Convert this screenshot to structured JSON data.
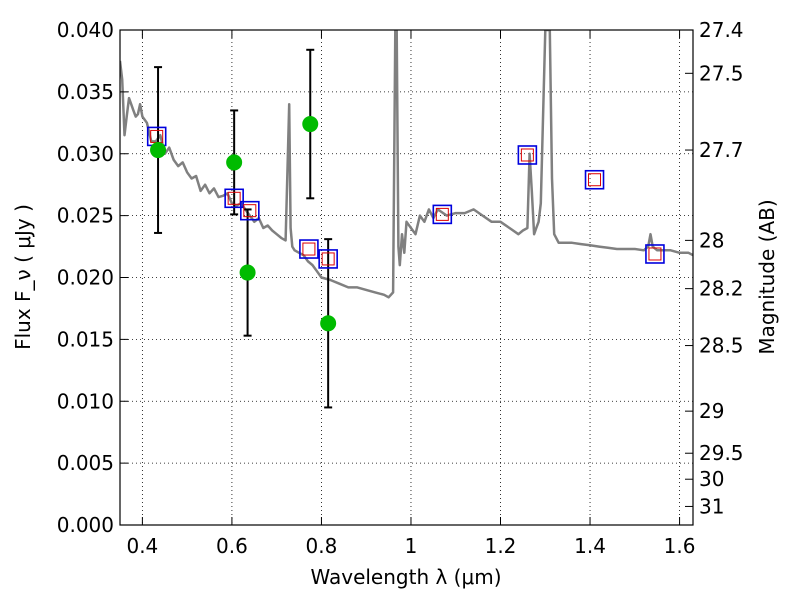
{
  "chart_data": {
    "type": "scatter",
    "xlabel": "Wavelength  λ (μm)",
    "ylabel": "Flux  F_ν  ( μJy )",
    "y2label": "Magnitude (AB)",
    "xlim": [
      0.35,
      1.63
    ],
    "ylim": [
      0.0,
      0.04
    ],
    "grid": true,
    "grid_style": "dotted",
    "x_ticks": [
      0.4,
      0.6,
      0.8,
      1.0,
      1.2,
      1.4,
      1.6
    ],
    "x_tick_labels": [
      "0.4",
      "0.6",
      "0.8",
      "1",
      "1.2",
      "1.4",
      "1.6"
    ],
    "y_ticks": [
      0.0,
      0.005,
      0.01,
      0.015,
      0.02,
      0.025,
      0.03,
      0.035,
      0.04
    ],
    "y_tick_labels": [
      "0.000",
      "0.005",
      "0.010",
      "0.015",
      "0.020",
      "0.025",
      "0.030",
      "0.035",
      "0.040"
    ],
    "y2_ticks": [
      {
        "flux": 0.04,
        "label": "27.4"
      },
      {
        "flux": 0.0365,
        "label": "27.5"
      },
      {
        "flux": 0.0303,
        "label": "27.7"
      },
      {
        "flux": 0.023,
        "label": "28"
      },
      {
        "flux": 0.0191,
        "label": "28.2"
      },
      {
        "flux": 0.0145,
        "label": "28.5"
      },
      {
        "flux": 0.0092,
        "label": "29"
      },
      {
        "flux": 0.0058,
        "label": "29.5"
      },
      {
        "flux": 0.0037,
        "label": "30"
      },
      {
        "flux": 0.0015,
        "label": "31"
      }
    ],
    "colors": {
      "spectrum": "#808080",
      "observed": "#00bb00",
      "model_box": "#0000dd",
      "model_inner": "#dd0000",
      "errorbar": "#000000"
    },
    "series": [
      {
        "kind": "spectrum",
        "x": [
          0.35,
          0.355,
          0.36,
          0.365,
          0.37,
          0.375,
          0.38,
          0.385,
          0.39,
          0.395,
          0.4,
          0.41,
          0.42,
          0.43,
          0.44,
          0.45,
          0.46,
          0.47,
          0.48,
          0.49,
          0.5,
          0.51,
          0.52,
          0.53,
          0.54,
          0.55,
          0.56,
          0.57,
          0.58,
          0.59,
          0.6,
          0.61,
          0.62,
          0.63,
          0.64,
          0.65,
          0.66,
          0.67,
          0.68,
          0.69,
          0.7,
          0.71,
          0.72,
          0.725,
          0.728,
          0.731,
          0.735,
          0.74,
          0.75,
          0.76,
          0.77,
          0.78,
          0.79,
          0.8,
          0.82,
          0.84,
          0.86,
          0.88,
          0.9,
          0.92,
          0.94,
          0.95,
          0.96,
          0.965,
          0.968,
          0.972,
          0.975,
          0.98,
          0.985,
          0.99,
          1.0,
          1.01,
          1.02,
          1.03,
          1.04,
          1.05,
          1.06,
          1.08,
          1.1,
          1.12,
          1.14,
          1.16,
          1.18,
          1.2,
          1.22,
          1.24,
          1.25,
          1.26,
          1.265,
          1.27,
          1.275,
          1.28,
          1.285,
          1.29,
          1.3,
          1.305,
          1.31,
          1.315,
          1.32,
          1.33,
          1.34,
          1.36,
          1.38,
          1.4,
          1.42,
          1.44,
          1.46,
          1.48,
          1.5,
          1.52,
          1.53,
          1.535,
          1.54,
          1.55,
          1.56,
          1.58,
          1.6,
          1.62,
          1.63
        ],
        "y": [
          0.0375,
          0.036,
          0.0315,
          0.033,
          0.0345,
          0.034,
          0.0335,
          0.033,
          0.0332,
          0.034,
          0.033,
          0.0325,
          0.031,
          0.031,
          0.0315,
          0.03,
          0.0305,
          0.0295,
          0.029,
          0.0293,
          0.0285,
          0.028,
          0.0282,
          0.027,
          0.0275,
          0.0268,
          0.0272,
          0.0265,
          0.0266,
          0.0268,
          0.026,
          0.0258,
          0.026,
          0.0255,
          0.025,
          0.0245,
          0.0248,
          0.024,
          0.0242,
          0.0238,
          0.0235,
          0.0232,
          0.023,
          0.03,
          0.034,
          0.024,
          0.0225,
          0.0222,
          0.022,
          0.0218,
          0.0213,
          0.021,
          0.0205,
          0.02,
          0.0198,
          0.0195,
          0.0192,
          0.0192,
          0.019,
          0.0188,
          0.0186,
          0.0184,
          0.0188,
          0.04,
          0.04,
          0.0225,
          0.021,
          0.0235,
          0.022,
          0.0245,
          0.024,
          0.0235,
          0.025,
          0.0245,
          0.0255,
          0.0248,
          0.0255,
          0.025,
          0.0252,
          0.0252,
          0.0255,
          0.025,
          0.0245,
          0.0245,
          0.024,
          0.0235,
          0.0238,
          0.024,
          0.03,
          0.027,
          0.0235,
          0.024,
          0.0245,
          0.026,
          0.04,
          0.04,
          0.04,
          0.028,
          0.0235,
          0.0228,
          0.0228,
          0.0228,
          0.0227,
          0.0226,
          0.0225,
          0.0224,
          0.0223,
          0.0223,
          0.0223,
          0.0222,
          0.0225,
          0.0235,
          0.0225,
          0.0222,
          0.0222,
          0.0222,
          0.022,
          0.022,
          0.0218
        ]
      },
      {
        "kind": "observed",
        "x": [
          0.435,
          0.605,
          0.635,
          0.775,
          0.815
        ],
        "y": [
          0.0303,
          0.0293,
          0.0204,
          0.0324,
          0.0163
        ],
        "err": [
          0.0067,
          0.0042,
          0.0051,
          0.006,
          0.0068
        ]
      },
      {
        "kind": "model",
        "x": [
          0.432,
          0.605,
          0.64,
          0.772,
          0.815,
          1.07,
          1.26,
          1.41,
          1.545
        ],
        "y": [
          0.0314,
          0.0264,
          0.0254,
          0.0223,
          0.0215,
          0.0251,
          0.0299,
          0.0279,
          0.0219
        ]
      }
    ]
  }
}
